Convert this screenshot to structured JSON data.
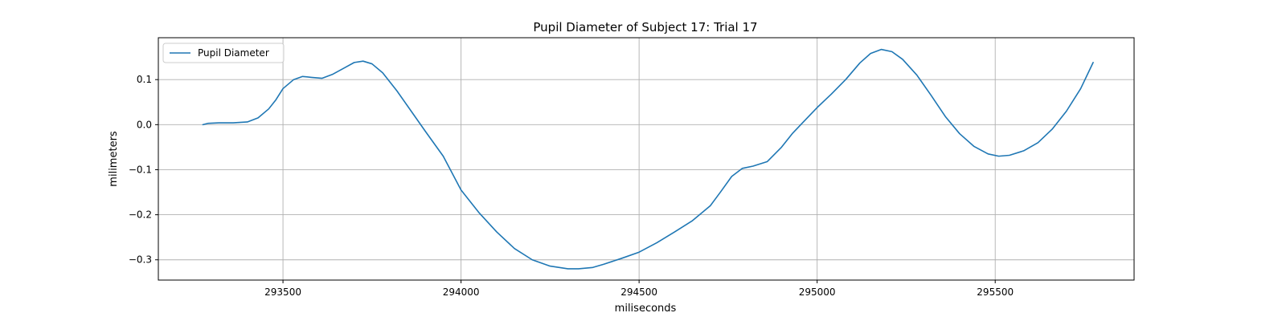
{
  "chart_data": {
    "type": "line",
    "title": "Pupil Diameter of Subject 17: Trial 17",
    "xlabel": "miliseconds",
    "ylabel": "milimeters",
    "xlim": [
      293150,
      295890
    ],
    "ylim": [
      -0.345,
      0.193
    ],
    "xticks": [
      293500,
      294000,
      294500,
      295000,
      295500
    ],
    "yticks": [
      -0.3,
      -0.2,
      -0.1,
      0.0,
      0.1
    ],
    "ytick_labels": [
      "−0.3",
      "−0.2",
      "−0.1",
      "0.0",
      "0.1"
    ],
    "grid": true,
    "legend_position": "top-left",
    "series": [
      {
        "name": "Pupil Diameter",
        "color": "#1f77b4",
        "x": [
          293275,
          293290,
          293320,
          293360,
          293400,
          293430,
          293460,
          293480,
          293500,
          293530,
          293555,
          293580,
          293610,
          293640,
          293670,
          293700,
          293725,
          293750,
          293780,
          293820,
          293860,
          293900,
          293950,
          294000,
          294050,
          294100,
          294150,
          294200,
          294250,
          294300,
          294330,
          294370,
          294400,
          294450,
          294500,
          294550,
          294600,
          294650,
          294700,
          294730,
          294760,
          294790,
          294820,
          294860,
          294900,
          294930,
          294960,
          295000,
          295040,
          295080,
          295120,
          295150,
          295180,
          295210,
          295240,
          295280,
          295320,
          295360,
          295400,
          295440,
          295480,
          295510,
          295540,
          295580,
          295620,
          295660,
          295700,
          295740,
          295775
        ],
        "values": [
          0.0,
          0.003,
          0.004,
          0.004,
          0.006,
          0.015,
          0.035,
          0.055,
          0.08,
          0.1,
          0.107,
          0.105,
          0.103,
          0.112,
          0.125,
          0.138,
          0.141,
          0.135,
          0.115,
          0.075,
          0.03,
          -0.015,
          -0.07,
          -0.145,
          -0.195,
          -0.238,
          -0.275,
          -0.3,
          -0.314,
          -0.32,
          -0.32,
          -0.317,
          -0.31,
          -0.297,
          -0.283,
          -0.262,
          -0.238,
          -0.213,
          -0.18,
          -0.148,
          -0.115,
          -0.097,
          -0.092,
          -0.082,
          -0.05,
          -0.02,
          0.005,
          0.038,
          0.068,
          0.1,
          0.137,
          0.158,
          0.167,
          0.162,
          0.145,
          0.11,
          0.065,
          0.018,
          -0.02,
          -0.048,
          -0.065,
          -0.07,
          -0.068,
          -0.058,
          -0.04,
          -0.01,
          0.03,
          0.08,
          0.138
        ]
      }
    ]
  }
}
